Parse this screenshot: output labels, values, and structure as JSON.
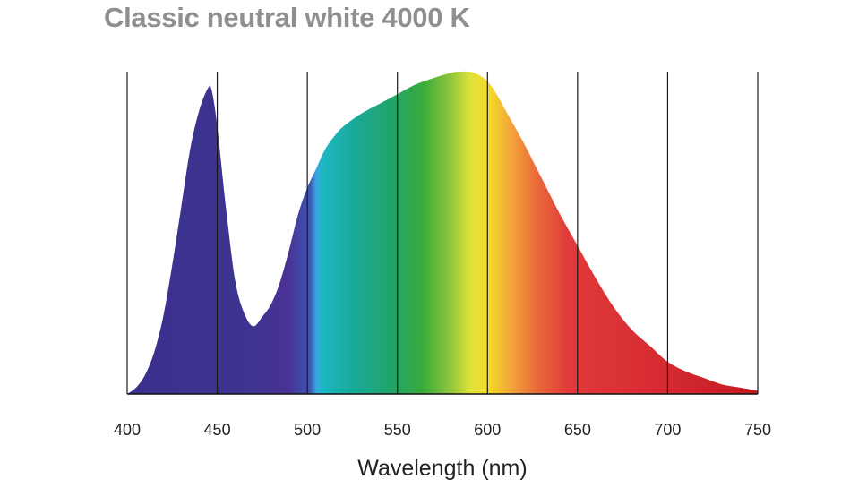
{
  "title": "Classic neutral white 4000 K",
  "chart_data": {
    "type": "area",
    "title": "Classic neutral white 4000 K",
    "xlabel": "Wavelength (nm)",
    "ylabel": "",
    "xlim": [
      400,
      750
    ],
    "ylim": [
      0,
      1
    ],
    "xticks": [
      400,
      450,
      500,
      550,
      600,
      650,
      700,
      750
    ],
    "grid": "vertical",
    "fill": "visible-spectrum gradient",
    "x": [
      400,
      405,
      410,
      415,
      420,
      425,
      430,
      435,
      440,
      445,
      447,
      450,
      455,
      460,
      465,
      470,
      475,
      480,
      485,
      490,
      495,
      500,
      505,
      510,
      515,
      520,
      530,
      540,
      550,
      560,
      570,
      580,
      585,
      590,
      595,
      600,
      605,
      610,
      620,
      630,
      640,
      650,
      660,
      670,
      680,
      690,
      700,
      710,
      720,
      730,
      740,
      750
    ],
    "values": [
      0,
      0.02,
      0.06,
      0.13,
      0.24,
      0.4,
      0.58,
      0.76,
      0.88,
      0.95,
      0.94,
      0.83,
      0.57,
      0.35,
      0.25,
      0.21,
      0.24,
      0.28,
      0.35,
      0.45,
      0.56,
      0.64,
      0.7,
      0.76,
      0.8,
      0.83,
      0.87,
      0.9,
      0.93,
      0.96,
      0.98,
      0.997,
      1.0,
      1.0,
      0.99,
      0.97,
      0.93,
      0.88,
      0.78,
      0.67,
      0.56,
      0.46,
      0.36,
      0.27,
      0.2,
      0.15,
      0.1,
      0.07,
      0.05,
      0.03,
      0.02,
      0.01
    ]
  }
}
